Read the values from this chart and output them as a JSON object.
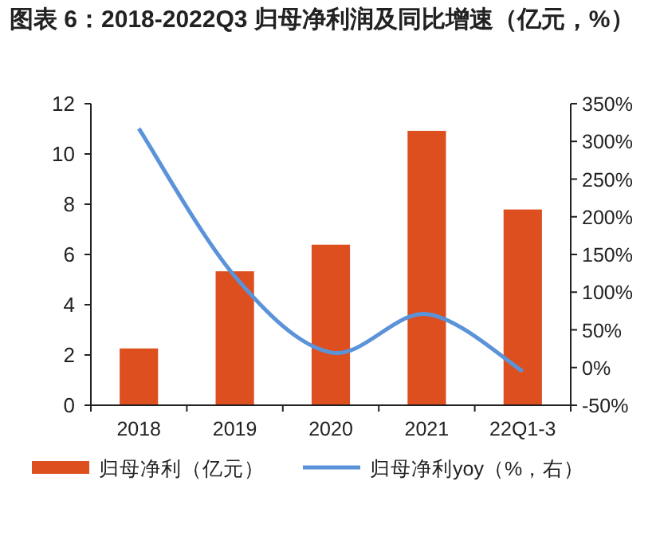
{
  "chart_data": {
    "type": "bar",
    "title": "图表 6：2018-2022Q3 归母净利润及同比增速（亿元，%）",
    "categories": [
      "2018",
      "2019",
      "2020",
      "2021",
      "22Q1-3"
    ],
    "series": [
      {
        "name": "归母净利（亿元）",
        "color": "#dd4f1f",
        "values": [
          2.26,
          5.33,
          6.39,
          10.92,
          7.79
        ]
      },
      {
        "name": "归母净利yoy（%，右）",
        "type": "line",
        "axis": "y2",
        "color": "#5b93d9",
        "values": [
          317,
          121,
          20,
          71,
          -5
        ]
      }
    ],
    "ylim": [
      0,
      12
    ],
    "yticks": [
      0,
      2,
      4,
      6,
      8,
      10,
      12
    ],
    "y2lim": [
      -50,
      350
    ],
    "y2ticks": [
      {
        "value": -50,
        "label": "-50%"
      },
      {
        "value": 0,
        "label": "0%"
      },
      {
        "value": 50,
        "label": "50%"
      },
      {
        "value": 100,
        "label": "100%"
      },
      {
        "value": 150,
        "label": "150%"
      },
      {
        "value": 200,
        "label": "200%"
      },
      {
        "value": 250,
        "label": "250%"
      },
      {
        "value": 300,
        "label": "300%"
      },
      {
        "value": 350,
        "label": "350%"
      }
    ],
    "grid": false,
    "legend": "bottom",
    "marker": "none",
    "line_style": "solid"
  }
}
